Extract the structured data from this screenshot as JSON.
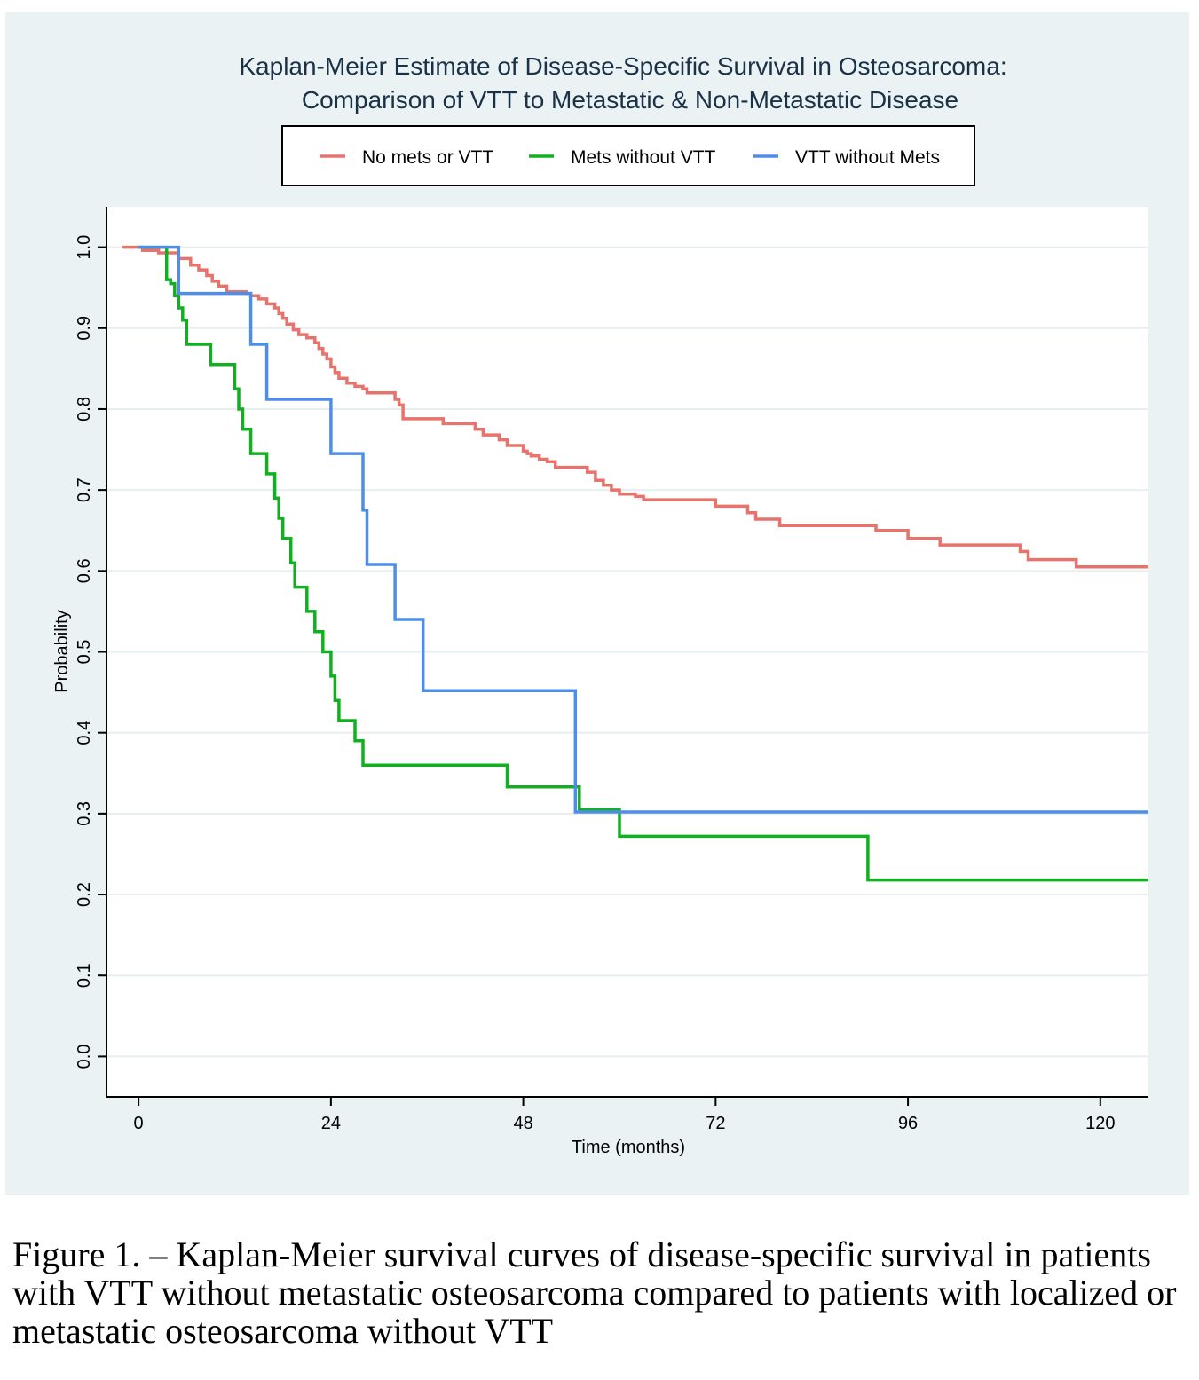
{
  "chart_data": {
    "type": "line",
    "step": true,
    "title": [
      "Kaplan-Meier Estimate of Disease-Specific Survival in Osteosarcoma:",
      "Comparison of VTT to Metastatic & Non-Metastatic Disease"
    ],
    "xlabel": "Time (months)",
    "ylabel": "Probability",
    "xlim": [
      -4,
      126
    ],
    "ylim": [
      -0.05,
      1.05
    ],
    "xticks": [
      0,
      24,
      48,
      72,
      96,
      120
    ],
    "yticks": [
      0.0,
      0.1,
      0.2,
      0.3,
      0.4,
      0.5,
      0.6,
      0.7,
      0.8,
      0.9,
      1.0
    ],
    "ytick_labels": [
      "0.0",
      "0.1",
      "0.2",
      "0.3",
      "0.4",
      "0.5",
      "0.6",
      "0.7",
      "0.8",
      "0.9",
      "1.0"
    ],
    "grid": true,
    "legend_position": "top",
    "series": [
      {
        "name": "No mets or VTT",
        "color": "#e8736c",
        "x": [
          -2,
          0.5,
          2.5,
          5,
          6.5,
          7.5,
          8.5,
          9.2,
          10,
          11,
          12,
          13.5,
          14,
          15,
          16,
          17,
          17.5,
          18,
          18.5,
          19.3,
          20,
          21,
          22,
          22.5,
          23,
          23.5,
          24,
          24.5,
          25,
          26,
          27,
          28,
          28.5,
          29,
          32,
          32.5,
          33,
          36,
          38,
          42,
          43,
          45,
          46,
          48,
          48.5,
          49,
          50,
          51,
          52,
          56,
          57,
          58,
          59,
          60,
          62,
          63,
          64,
          66,
          68,
          70,
          72,
          73,
          74,
          76,
          77,
          79,
          80,
          82,
          84,
          86,
          88,
          92,
          93,
          96,
          97,
          100,
          101,
          104,
          106,
          110,
          111,
          113,
          117,
          118,
          126
        ],
        "y": [
          1.0,
          0.996,
          0.993,
          0.986,
          0.978,
          0.972,
          0.965,
          0.958,
          0.952,
          0.945,
          0.945,
          0.943,
          0.94,
          0.936,
          0.93,
          0.925,
          0.918,
          0.912,
          0.905,
          0.898,
          0.892,
          0.888,
          0.882,
          0.875,
          0.868,
          0.862,
          0.852,
          0.845,
          0.838,
          0.832,
          0.828,
          0.825,
          0.82,
          0.82,
          0.812,
          0.805,
          0.788,
          0.788,
          0.782,
          0.775,
          0.768,
          0.762,
          0.755,
          0.748,
          0.745,
          0.742,
          0.738,
          0.735,
          0.728,
          0.722,
          0.712,
          0.706,
          0.7,
          0.695,
          0.692,
          0.688,
          0.688,
          0.688,
          0.688,
          0.688,
          0.68,
          0.68,
          0.68,
          0.672,
          0.664,
          0.664,
          0.656,
          0.656,
          0.656,
          0.656,
          0.656,
          0.65,
          0.65,
          0.64,
          0.64,
          0.632,
          0.632,
          0.632,
          0.632,
          0.624,
          0.614,
          0.614,
          0.605,
          0.605,
          0.605
        ]
      },
      {
        "name": "Mets without VTT",
        "color": "#10b020",
        "x": [
          0,
          3.5,
          4,
          4.5,
          5,
          5.5,
          6,
          8,
          9,
          11,
          12,
          12.5,
          13,
          14,
          15,
          16,
          17,
          17.5,
          18,
          19,
          19.5,
          20,
          21,
          21.5,
          22,
          23,
          23.5,
          24,
          24.5,
          25,
          25.5,
          27,
          28,
          29,
          36,
          40,
          42,
          45,
          46,
          54,
          55,
          60,
          68,
          72,
          90,
          91,
          126
        ],
        "y": [
          1.0,
          0.96,
          0.955,
          0.94,
          0.925,
          0.91,
          0.88,
          0.88,
          0.855,
          0.855,
          0.825,
          0.8,
          0.775,
          0.745,
          0.745,
          0.72,
          0.69,
          0.665,
          0.64,
          0.61,
          0.58,
          0.58,
          0.55,
          0.55,
          0.525,
          0.5,
          0.5,
          0.47,
          0.44,
          0.415,
          0.415,
          0.39,
          0.36,
          0.36,
          0.36,
          0.36,
          0.36,
          0.36,
          0.333,
          0.333,
          0.305,
          0.272,
          0.272,
          0.272,
          0.272,
          0.218,
          0.218
        ]
      },
      {
        "name": "VTT without Mets",
        "color": "#4f8ee8",
        "x": [
          0,
          5,
          13,
          14,
          15,
          16,
          23,
          24,
          28,
          28.5,
          32,
          35.5,
          48,
          54.5,
          126
        ],
        "y": [
          1.0,
          0.943,
          0.943,
          0.88,
          0.88,
          0.812,
          0.812,
          0.745,
          0.675,
          0.608,
          0.54,
          0.452,
          0.452,
          0.302,
          0.302
        ]
      }
    ]
  },
  "caption": "Figure 1. – Kaplan-Meier survival curves of disease-specific survival in patients with VTT without metastatic osteosarcoma compared to patients with localized or metastatic osteosarcoma without VTT"
}
